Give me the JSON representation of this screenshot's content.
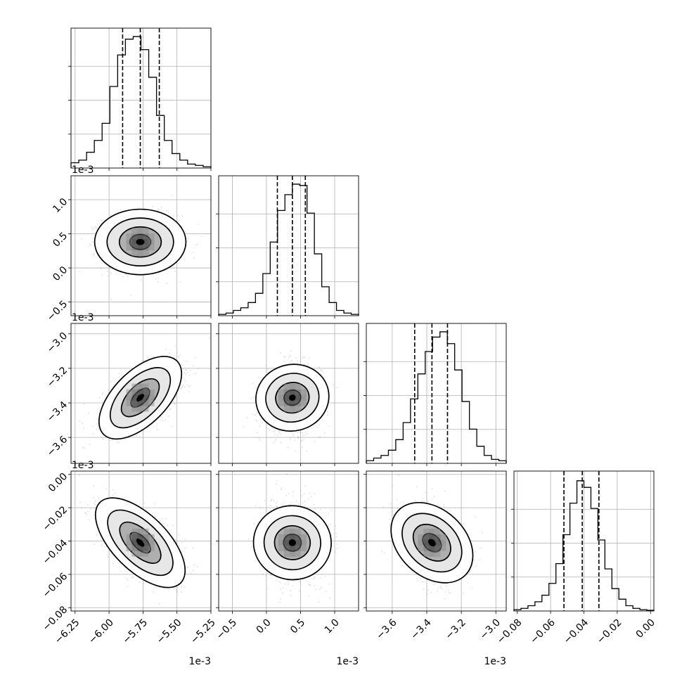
{
  "chart_data": {
    "type": "corner",
    "offset_label": "1e-3",
    "grid": true,
    "quantile_style": "dashed",
    "parameters": [
      {
        "range": [
          -6.28,
          -5.25
        ],
        "ticks": [
          -6.25,
          -6.0,
          -5.75,
          -5.5,
          -5.25
        ],
        "tick_labels": [
          "−6.25",
          "−6.00",
          "−5.75",
          "−5.50",
          "−5.25"
        ],
        "scale_label": "1e-3",
        "median": -5.77,
        "sigma": 0.14,
        "quantiles": [
          -5.9,
          -5.77,
          -5.63
        ],
        "hist": [
          0.04,
          0.06,
          0.12,
          0.21,
          0.34,
          0.62,
          0.86,
          0.98,
          1.0,
          0.9,
          0.69,
          0.4,
          0.21,
          0.11,
          0.06,
          0.03,
          0.02,
          0.01
        ]
      },
      {
        "range": [
          -0.7,
          1.35
        ],
        "ticks": [
          -0.5,
          0.0,
          0.5,
          1.0
        ],
        "tick_labels": [
          "−0.5",
          "0.0",
          "0.5",
          "1.0"
        ],
        "scale_label": "1e-3",
        "median": 0.38,
        "sigma": 0.2,
        "quantiles": [
          0.16,
          0.38,
          0.57
        ],
        "hist": [
          0.01,
          0.02,
          0.04,
          0.06,
          0.1,
          0.17,
          0.32,
          0.56,
          0.8,
          0.92,
          1.0,
          0.99,
          0.78,
          0.47,
          0.22,
          0.1,
          0.04,
          0.02,
          0.01
        ]
      },
      {
        "range": [
          -3.75,
          -2.94
        ],
        "ticks": [
          -3.6,
          -3.4,
          -3.2,
          -3.0
        ],
        "tick_labels": [
          "−3.6",
          "−3.4",
          "−3.2",
          "−3.0"
        ],
        "scale_label": "1e-3",
        "median": -3.37,
        "sigma": 0.09,
        "quantiles": [
          -3.47,
          -3.37,
          -3.28
        ],
        "hist": [
          0.02,
          0.04,
          0.06,
          0.1,
          0.18,
          0.31,
          0.49,
          0.68,
          0.85,
          0.96,
          1.0,
          0.91,
          0.71,
          0.47,
          0.26,
          0.13,
          0.06,
          0.03,
          0.02
        ]
      },
      {
        "range": [
          -0.082,
          0.002
        ],
        "ticks": [
          -0.08,
          -0.06,
          -0.04,
          -0.02,
          0.0
        ],
        "tick_labels": [
          "−0.08",
          "−0.06",
          "−0.04",
          "−0.02",
          "0.00"
        ],
        "scale_label": "",
        "median": -0.041,
        "sigma": 0.011,
        "quantiles": [
          -0.052,
          -0.041,
          -0.031
        ],
        "hist": [
          0.01,
          0.02,
          0.04,
          0.07,
          0.12,
          0.21,
          0.36,
          0.58,
          0.82,
          0.99,
          0.94,
          0.78,
          0.54,
          0.32,
          0.17,
          0.09,
          0.04,
          0.02,
          0.01,
          0.005
        ]
      }
    ],
    "correlations": [
      [
        1.0,
        0.0,
        0.58,
        -0.62
      ],
      [
        0.0,
        1.0,
        0.1,
        -0.05
      ],
      [
        0.58,
        0.1,
        1.0,
        -0.32
      ],
      [
        -0.62,
        -0.05,
        -0.32,
        1.0
      ]
    ]
  }
}
